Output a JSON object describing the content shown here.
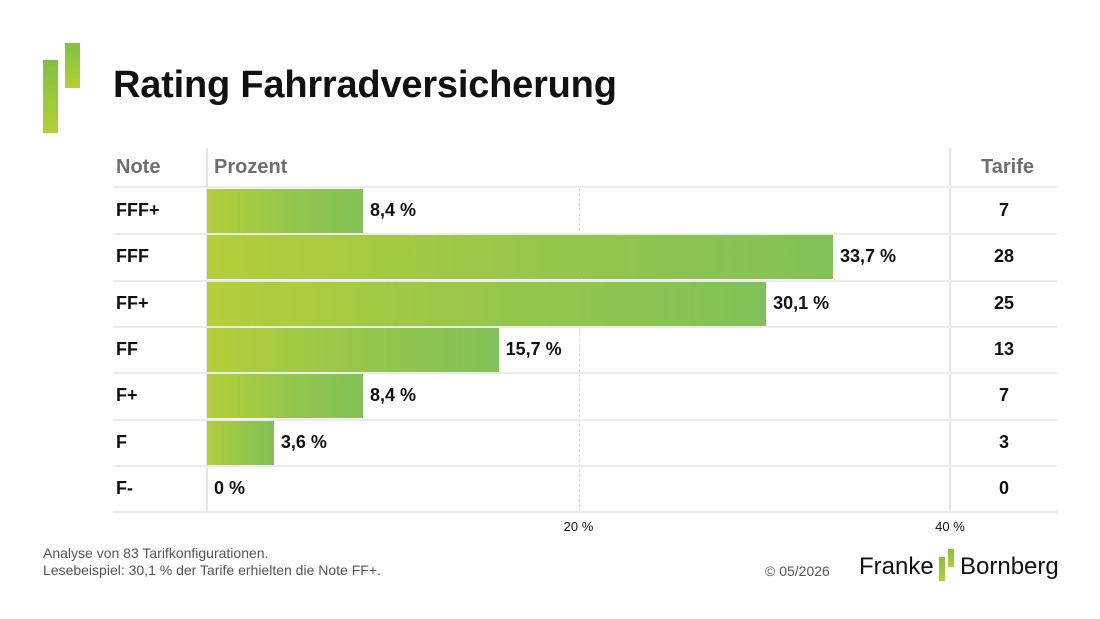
{
  "title": "Rating Fahrradversicherung",
  "colors": {
    "bar_start": "#b4cf3a",
    "bar_end": "#82c258",
    "grid": "#e6e6e6",
    "header_text": "#6f6f6f"
  },
  "chart_data": {
    "type": "bar",
    "orientation": "horizontal",
    "columns": {
      "grade": "Note",
      "percent": "Prozent",
      "count": "Tarife"
    },
    "categories": [
      "FFF+",
      "FFF",
      "FF+",
      "FF",
      "F+",
      "F",
      "F-"
    ],
    "values": [
      8.4,
      33.7,
      30.1,
      15.7,
      8.4,
      3.6,
      0
    ],
    "value_labels": [
      "8,4 %",
      "33,7 %",
      "30,1 %",
      "15,7 %",
      "8,4 %",
      "3,6 %",
      "0 %"
    ],
    "counts": [
      "7",
      "28",
      "25",
      "13",
      "7",
      "3",
      "0"
    ],
    "xlim": [
      0,
      40
    ],
    "xticks": [
      {
        "value": 20,
        "label": "20 %"
      },
      {
        "value": 40,
        "label": "40 %"
      }
    ],
    "grid": true
  },
  "footnote": {
    "line1": "Analyse von 83 Tarifkonfigurationen.",
    "line2": "Lesebeispiel: 30,1 % der Tarife erhielten die Note FF+."
  },
  "copyright": "© 05/2026",
  "brand": {
    "word1": "Franke",
    "word2": "Bornberg",
    "mark_icon": "franke-bornberg-logo-icon"
  },
  "logo_icon": "green-bars-logo-icon"
}
